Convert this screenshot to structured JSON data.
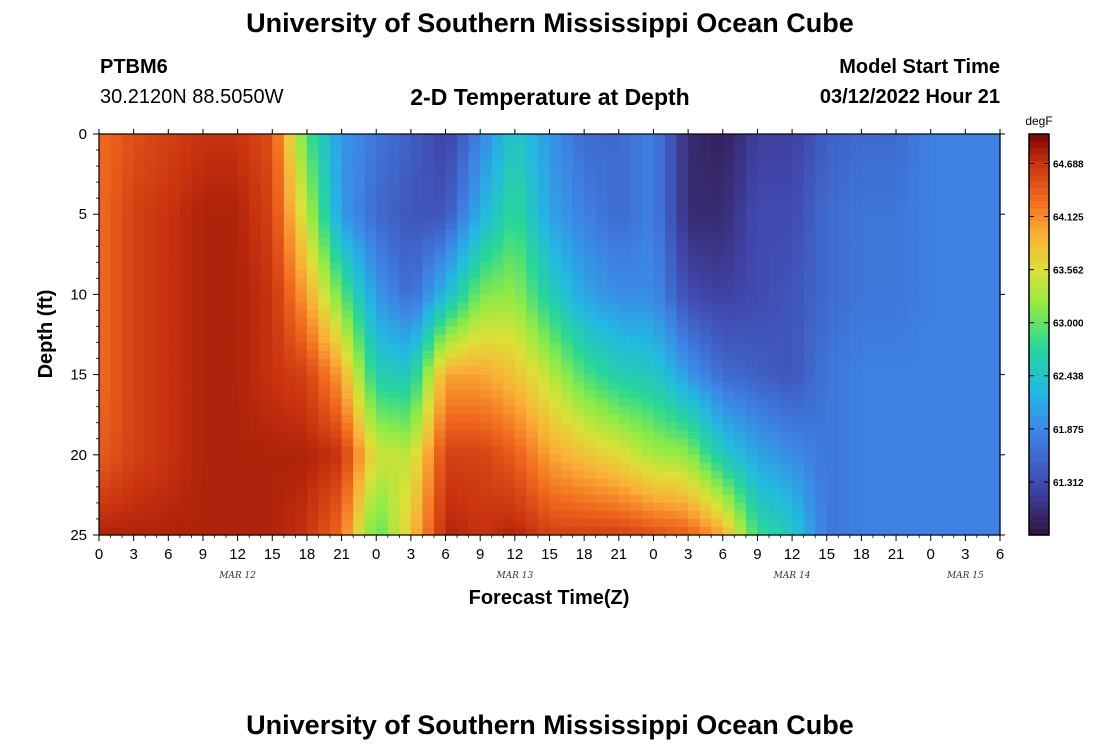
{
  "page": {
    "title": "University of Southern Mississippi Ocean Cube",
    "footer_title": "University of Southern Mississippi Ocean Cube",
    "station_id": "PTBM6",
    "station_coords": "30.2120N  88.5050W",
    "plot_title": "2-D Temperature at Depth",
    "model_start_label": "Model Start Time",
    "model_start_value": "03/12/2022 Hour 21"
  },
  "chart_data": {
    "type": "heatmap",
    "title": "2-D Temperature at Depth",
    "xlabel": "Forecast Time(Z)",
    "ylabel": "Depth (ft)",
    "x_unit": "hours since 03/12/2022 00Z",
    "xlim": [
      0,
      78
    ],
    "ylim": [
      0,
      25
    ],
    "y_inverted": true,
    "x_ticks": [
      {
        "value": 0,
        "label": "0"
      },
      {
        "value": 3,
        "label": "3"
      },
      {
        "value": 6,
        "label": "6"
      },
      {
        "value": 9,
        "label": "9"
      },
      {
        "value": 12,
        "label": "12"
      },
      {
        "value": 15,
        "label": "15"
      },
      {
        "value": 18,
        "label": "18"
      },
      {
        "value": 21,
        "label": "21"
      },
      {
        "value": 24,
        "label": "0"
      },
      {
        "value": 27,
        "label": "3"
      },
      {
        "value": 30,
        "label": "6"
      },
      {
        "value": 33,
        "label": "9"
      },
      {
        "value": 36,
        "label": "12"
      },
      {
        "value": 39,
        "label": "15"
      },
      {
        "value": 42,
        "label": "18"
      },
      {
        "value": 45,
        "label": "21"
      },
      {
        "value": 48,
        "label": "0"
      },
      {
        "value": 51,
        "label": "3"
      },
      {
        "value": 54,
        "label": "6"
      },
      {
        "value": 57,
        "label": "9"
      },
      {
        "value": 60,
        "label": "12"
      },
      {
        "value": 63,
        "label": "15"
      },
      {
        "value": 66,
        "label": "18"
      },
      {
        "value": 69,
        "label": "21"
      },
      {
        "value": 72,
        "label": "0"
      },
      {
        "value": 75,
        "label": "3"
      },
      {
        "value": 78,
        "label": "6"
      }
    ],
    "y_ticks": [
      {
        "value": 0,
        "label": "0"
      },
      {
        "value": 5,
        "label": "5"
      },
      {
        "value": 10,
        "label": "10"
      },
      {
        "value": 15,
        "label": "15"
      },
      {
        "value": 20,
        "label": "20"
      },
      {
        "value": 25,
        "label": "25"
      }
    ],
    "date_labels": [
      {
        "value": 12,
        "label": "MAR 12"
      },
      {
        "value": 36,
        "label": "MAR 13"
      },
      {
        "value": 60,
        "label": "MAR 14"
      },
      {
        "value": 75,
        "label": "MAR 15"
      }
    ],
    "colorbar": {
      "unit": "degF",
      "min": 60.75,
      "max": 65.0,
      "tick_values": [
        64.688,
        64.125,
        63.562,
        63.0,
        62.438,
        61.875,
        61.312
      ],
      "tick_labels": [
        "64.688",
        "64.125",
        "63.562",
        "63.000",
        "62.438",
        "61.875",
        "61.312"
      ]
    },
    "grid_x_hours": [
      0,
      3,
      6,
      9,
      12,
      15,
      18,
      21,
      24,
      27,
      30,
      33,
      36,
      39,
      42,
      45,
      48,
      51,
      54,
      57,
      60,
      63,
      66,
      69,
      72,
      75,
      78
    ],
    "grid_depths_ft": [
      0,
      5,
      10,
      15,
      20,
      25
    ],
    "values_degF": [
      [
        64.3,
        64.5,
        64.6,
        64.7,
        64.7,
        64.5,
        62.9,
        62.0,
        61.7,
        61.5,
        61.2,
        61.8,
        62.5,
        62.0,
        61.6,
        61.6,
        61.8,
        61.0,
        60.9,
        61.2,
        61.2,
        61.5,
        61.6,
        61.6,
        61.8,
        61.8,
        61.8
      ],
      [
        64.3,
        64.6,
        64.7,
        64.8,
        64.8,
        64.6,
        63.4,
        62.0,
        61.6,
        61.4,
        61.4,
        62.2,
        62.8,
        62.1,
        61.8,
        61.6,
        61.8,
        61.0,
        61.0,
        61.3,
        61.3,
        61.6,
        61.7,
        61.7,
        61.8,
        61.8,
        61.8
      ],
      [
        64.3,
        64.6,
        64.7,
        64.8,
        64.8,
        64.7,
        64.0,
        63.0,
        62.0,
        61.6,
        62.3,
        63.1,
        63.2,
        62.6,
        62.1,
        61.9,
        61.9,
        61.3,
        61.2,
        61.3,
        61.4,
        61.6,
        61.7,
        61.7,
        61.8,
        61.8,
        61.8
      ],
      [
        64.3,
        64.6,
        64.7,
        64.8,
        64.8,
        64.7,
        64.6,
        64.0,
        62.6,
        62.5,
        64.0,
        64.0,
        63.8,
        63.4,
        62.9,
        62.6,
        62.5,
        62.0,
        61.6,
        61.5,
        61.4,
        61.7,
        61.8,
        61.8,
        61.8,
        61.8,
        61.8
      ],
      [
        64.4,
        64.6,
        64.7,
        64.8,
        64.8,
        64.8,
        64.8,
        64.7,
        63.5,
        63.4,
        64.6,
        64.6,
        64.4,
        64.0,
        63.8,
        63.6,
        63.3,
        63.2,
        62.5,
        62.1,
        61.9,
        61.7,
        61.8,
        61.8,
        61.8,
        61.8,
        61.8
      ],
      [
        64.8,
        64.8,
        64.8,
        64.8,
        64.8,
        64.8,
        64.7,
        64.3,
        62.9,
        63.8,
        64.8,
        64.7,
        64.8,
        64.6,
        64.6,
        64.6,
        64.5,
        64.4,
        64.0,
        62.8,
        62.5,
        61.7,
        61.8,
        61.8,
        61.8,
        61.8,
        61.8
      ]
    ]
  }
}
